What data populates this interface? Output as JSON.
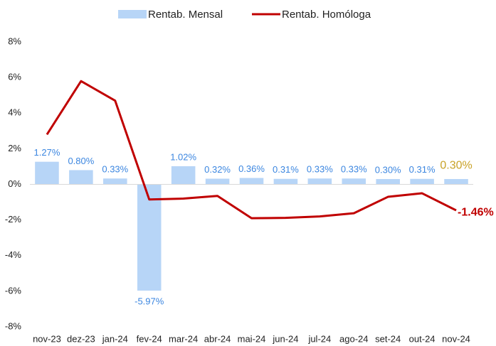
{
  "chart_data": {
    "type": "bar_line",
    "categories": [
      "nov-23",
      "dez-23",
      "jan-24",
      "fev-24",
      "mar-24",
      "abr-24",
      "mai-24",
      "jun-24",
      "jul-24",
      "ago-24",
      "set-24",
      "out-24",
      "nov-24"
    ],
    "series": [
      {
        "name": "Rentab. Mensal",
        "type": "bar",
        "color": "#b7d5f7",
        "label_color": "#3b86e0",
        "highlight_label_color": "#c9a227",
        "values": [
          1.27,
          0.8,
          0.33,
          -5.97,
          1.02,
          0.32,
          0.36,
          0.31,
          0.33,
          0.33,
          0.3,
          0.31,
          0.3
        ],
        "value_labels": [
          "1.27%",
          "0.80%",
          "0.33%",
          "-5.97%",
          "1.02%",
          "0.32%",
          "0.36%",
          "0.31%",
          "0.33%",
          "0.33%",
          "0.30%",
          "0.31%",
          "0.30%"
        ]
      },
      {
        "name": "Rentab. Homóloga",
        "type": "line",
        "color": "#c00000",
        "label_color": "#c00000",
        "values": [
          2.8,
          5.8,
          4.7,
          -0.85,
          -0.8,
          -0.65,
          -1.9,
          -1.88,
          -1.8,
          -1.62,
          -0.7,
          -0.5,
          -1.46
        ],
        "value_labels": [
          null,
          null,
          null,
          null,
          null,
          null,
          null,
          null,
          null,
          null,
          null,
          null,
          "-1.46%"
        ]
      }
    ],
    "ylim": [
      -8,
      8
    ],
    "yticks": [
      {
        "value": -8,
        "label": "-8%"
      },
      {
        "value": -6,
        "label": "-6%"
      },
      {
        "value": -4,
        "label": "-4%"
      },
      {
        "value": -2,
        "label": "-2%"
      },
      {
        "value": 0,
        "label": "0%"
      },
      {
        "value": 2,
        "label": "2%"
      },
      {
        "value": 4,
        "label": "4%"
      },
      {
        "value": 6,
        "label": "6%"
      },
      {
        "value": 8,
        "label": "8%"
      }
    ],
    "grid": false,
    "legend": "top"
  }
}
